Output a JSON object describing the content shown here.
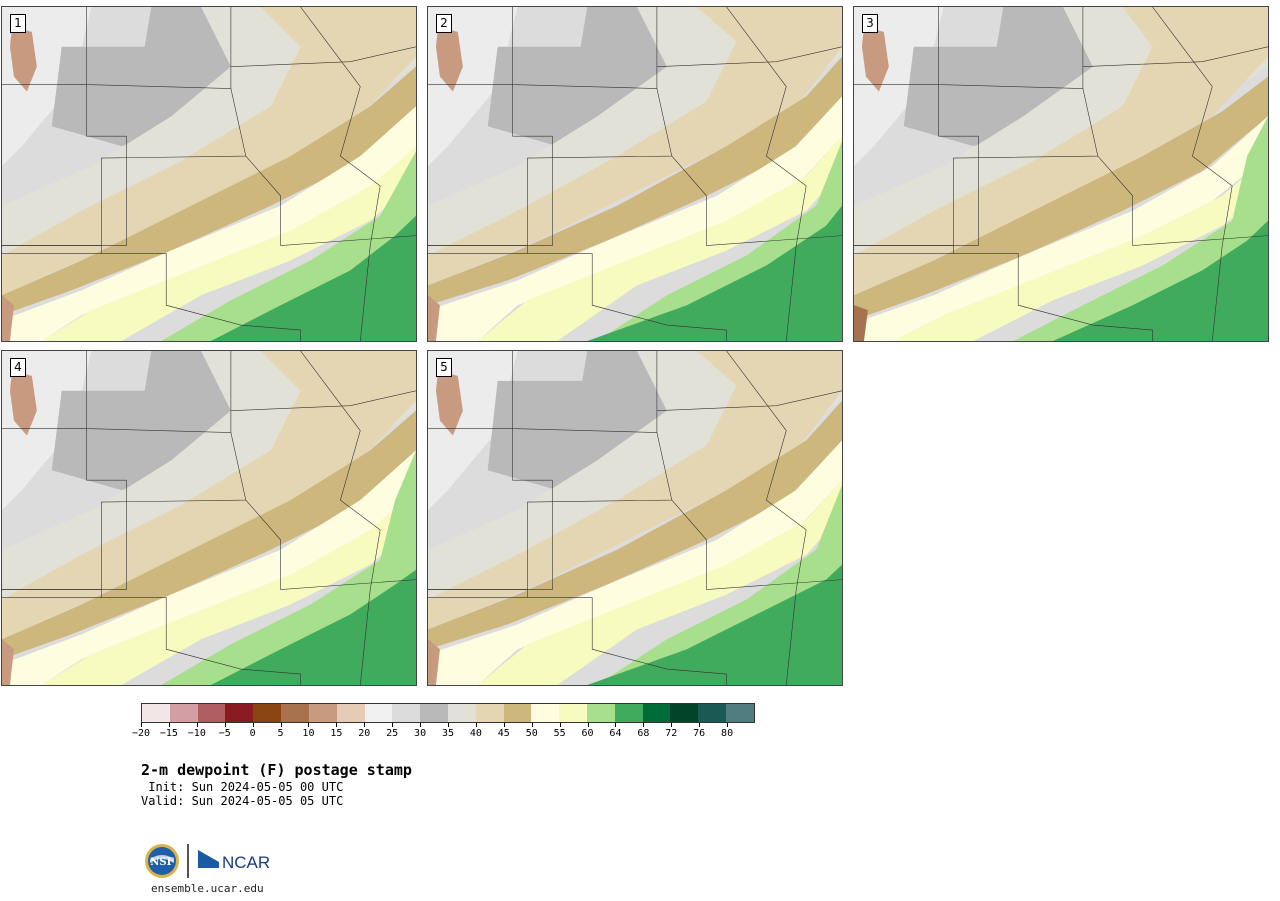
{
  "panels": [
    {
      "label": "1"
    },
    {
      "label": "2"
    },
    {
      "label": "3"
    },
    {
      "label": "4"
    },
    {
      "label": "5"
    }
  ],
  "colorbar": {
    "colors": [
      "#f3e6e6",
      "#d49fa3",
      "#b05e62",
      "#8a1a22",
      "#8a4513",
      "#a8724e",
      "#c89b80",
      "#e6cbb7",
      "#f0f0f0",
      "#dcdcdc",
      "#b9b9b9",
      "#e2e1d7",
      "#e4d6b2",
      "#cdb77c",
      "#fffde0",
      "#f8fbc0",
      "#a8df8c",
      "#41ab5d",
      "#006d38",
      "#00442a",
      "#1a5a55",
      "#4f7d80"
    ],
    "tick_labels": [
      "−20",
      "−15",
      "−10",
      "−5",
      "0",
      "5",
      "10",
      "15",
      "20",
      "25",
      "30",
      "35",
      "40",
      "45",
      "50",
      "55",
      "60",
      "64",
      "68",
      "72",
      "76",
      "80"
    ]
  },
  "title": "2-m dewpoint (F) postage stamp",
  "init": " Init: Sun 2024-05-05 00 UTC",
  "valid": "Valid: Sun 2024-05-05 05 UTC",
  "footer": {
    "nsf_logo_text": "NSF",
    "ncar_logo_text": "NCAR",
    "url": "ensemble.ucar.edu"
  }
}
